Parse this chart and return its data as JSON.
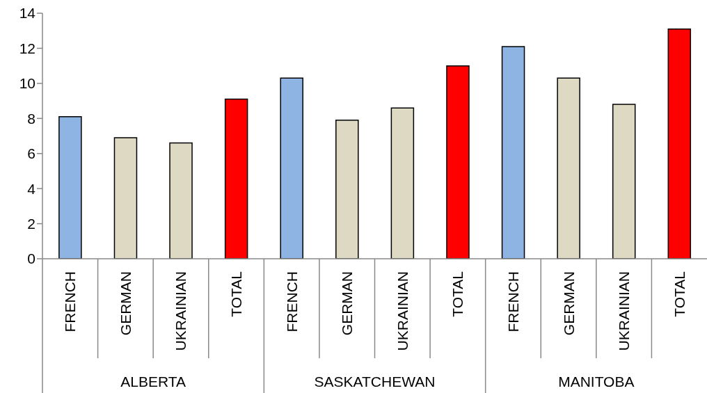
{
  "chart_data": {
    "type": "bar",
    "categories": [
      "FRENCH",
      "GERMAN",
      "UKRAINIAN",
      "TOTAL",
      "FRENCH",
      "GERMAN",
      "UKRAINIAN",
      "TOTAL",
      "FRENCH",
      "GERMAN",
      "UKRAINIAN",
      "TOTAL"
    ],
    "values": [
      8.1,
      6.9,
      6.6,
      9.1,
      10.3,
      7.9,
      8.6,
      11,
      12.1,
      10.3,
      8.8,
      13.1
    ],
    "colors": [
      "#8eb4e3",
      "#ddd9c3",
      "#ddd9c3",
      "#ff0000",
      "#8eb4e3",
      "#ddd9c3",
      "#ddd9c3",
      "#ff0000",
      "#8eb4e3",
      "#ddd9c3",
      "#ddd9c3",
      "#ff0000"
    ],
    "ylim": [
      0,
      14
    ],
    "yticks": [
      0,
      2,
      4,
      6,
      8,
      10,
      12,
      14
    ],
    "annotations": [
      "ALBERTA",
      "SASKATCHEWAN",
      "MANITOBA"
    ]
  }
}
